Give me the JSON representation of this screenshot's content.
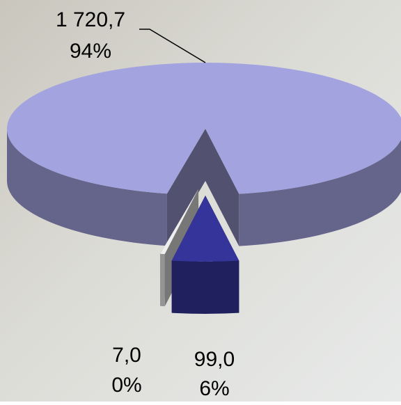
{
  "chart_data": {
    "type": "pie3d",
    "values": [
      1720.7,
      7.0,
      99.0
    ],
    "value_labels": [
      "1 720,7",
      "7,0",
      "99,0"
    ],
    "percent_labels": [
      "94%",
      "0%",
      "6%"
    ],
    "colors": [
      "#a3a3e0",
      "#eeeeee",
      "#34349a"
    ]
  }
}
